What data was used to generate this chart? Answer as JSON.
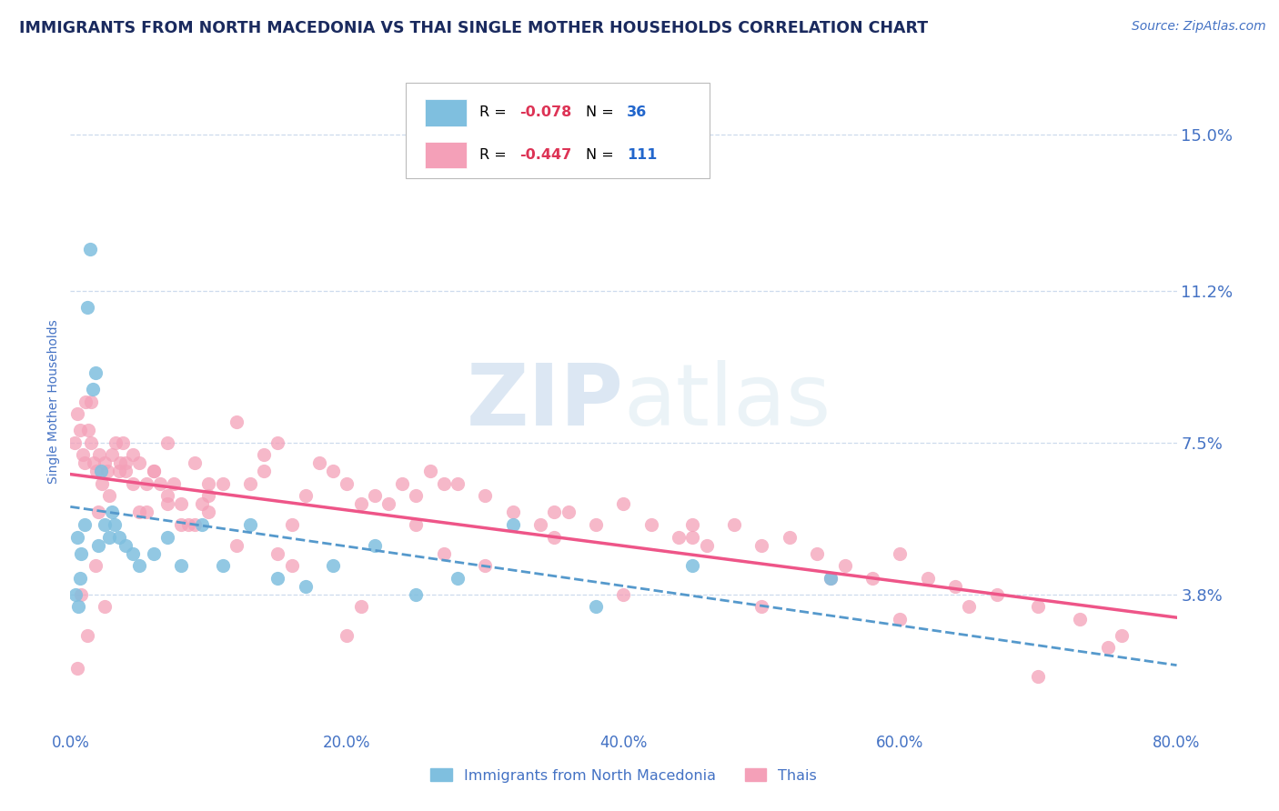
{
  "title": "IMMIGRANTS FROM NORTH MACEDONIA VS THAI SINGLE MOTHER HOUSEHOLDS CORRELATION CHART",
  "source_text": "Source: ZipAtlas.com",
  "ylabel": "Single Mother Households",
  "x_min": 0.0,
  "x_max": 80.0,
  "y_min": 0.5,
  "y_max": 16.5,
  "yticks": [
    3.8,
    7.5,
    11.2,
    15.0
  ],
  "xticks": [
    0.0,
    20.0,
    40.0,
    60.0,
    80.0
  ],
  "xtick_labels": [
    "0.0%",
    "20.0%",
    "40.0%",
    "60.0%",
    "80.0%"
  ],
  "ytick_labels": [
    "3.8%",
    "7.5%",
    "11.2%",
    "15.0%"
  ],
  "blue_R": -0.078,
  "blue_N": 36,
  "pink_R": -0.447,
  "pink_N": 111,
  "blue_color": "#7fbfdf",
  "pink_color": "#f4a0b8",
  "blue_line_color": "#5599cc",
  "pink_line_color": "#ee5588",
  "title_color": "#1a2a5e",
  "tick_color": "#4472c4",
  "grid_color": "#c8d8ec",
  "watermark_color": "#dce8f0",
  "legend_R_color": "#dd3355",
  "legend_N_color": "#2266cc",
  "blue_scatter_x": [
    0.4,
    0.5,
    0.6,
    0.7,
    0.8,
    1.0,
    1.2,
    1.4,
    1.6,
    1.8,
    2.0,
    2.2,
    2.5,
    2.8,
    3.0,
    3.2,
    3.5,
    4.0,
    4.5,
    5.0,
    6.0,
    7.0,
    8.0,
    9.5,
    11.0,
    13.0,
    15.0,
    17.0,
    19.0,
    22.0,
    25.0,
    28.0,
    32.0,
    38.0,
    45.0,
    55.0
  ],
  "blue_scatter_y": [
    3.8,
    5.2,
    3.5,
    4.2,
    4.8,
    5.5,
    10.8,
    12.2,
    8.8,
    9.2,
    5.0,
    6.8,
    5.5,
    5.2,
    5.8,
    5.5,
    5.2,
    5.0,
    4.8,
    4.5,
    4.8,
    5.2,
    4.5,
    5.5,
    4.5,
    5.5,
    4.2,
    4.0,
    4.5,
    5.0,
    3.8,
    4.2,
    5.5,
    3.5,
    4.5,
    4.2
  ],
  "pink_scatter_x": [
    0.3,
    0.5,
    0.7,
    0.9,
    1.1,
    1.3,
    1.5,
    1.7,
    1.9,
    2.1,
    2.3,
    2.5,
    2.7,
    3.0,
    3.3,
    3.6,
    4.0,
    4.5,
    5.0,
    5.5,
    6.0,
    6.5,
    7.0,
    7.5,
    8.0,
    8.5,
    9.0,
    9.5,
    10.0,
    11.0,
    12.0,
    13.0,
    14.0,
    15.0,
    16.0,
    17.0,
    18.0,
    19.0,
    20.0,
    21.0,
    22.0,
    23.0,
    24.0,
    25.0,
    26.0,
    27.0,
    28.0,
    30.0,
    32.0,
    34.0,
    36.0,
    38.0,
    40.0,
    42.0,
    44.0,
    46.0,
    48.0,
    50.0,
    52.0,
    54.0,
    56.0,
    58.0,
    60.0,
    62.0,
    64.0,
    67.0,
    70.0,
    73.0,
    76.0,
    1.0,
    1.5,
    2.0,
    2.8,
    3.5,
    4.5,
    5.5,
    7.0,
    9.0,
    12.0,
    16.0,
    21.0,
    27.0,
    35.0,
    45.0,
    55.0,
    65.0,
    75.0,
    4.0,
    6.0,
    8.0,
    10.0,
    15.0,
    20.0,
    30.0,
    40.0,
    50.0,
    60.0,
    70.0,
    25.0,
    35.0,
    45.0,
    0.5,
    0.8,
    1.2,
    1.8,
    2.5,
    3.8,
    5.0,
    7.0,
    10.0,
    14.0
  ],
  "pink_scatter_y": [
    7.5,
    8.2,
    7.8,
    7.2,
    8.5,
    7.8,
    7.5,
    7.0,
    6.8,
    7.2,
    6.5,
    7.0,
    6.8,
    7.2,
    7.5,
    7.0,
    6.8,
    7.2,
    7.0,
    6.5,
    6.8,
    6.5,
    7.5,
    6.5,
    6.0,
    5.5,
    7.0,
    6.0,
    6.2,
    6.5,
    8.0,
    6.5,
    7.2,
    7.5,
    5.5,
    6.2,
    7.0,
    6.8,
    6.5,
    6.0,
    6.2,
    6.0,
    6.5,
    6.2,
    6.8,
    6.5,
    6.5,
    6.2,
    5.8,
    5.5,
    5.8,
    5.5,
    6.0,
    5.5,
    5.2,
    5.0,
    5.5,
    5.0,
    5.2,
    4.8,
    4.5,
    4.2,
    4.8,
    4.2,
    4.0,
    3.8,
    3.5,
    3.2,
    2.8,
    7.0,
    8.5,
    5.8,
    6.2,
    6.8,
    6.5,
    5.8,
    6.0,
    5.5,
    5.0,
    4.5,
    3.5,
    4.8,
    5.2,
    5.5,
    4.2,
    3.5,
    2.5,
    7.0,
    6.8,
    5.5,
    5.8,
    4.8,
    2.8,
    4.5,
    3.8,
    3.5,
    3.2,
    1.8,
    5.5,
    5.8,
    5.2,
    2.0,
    3.8,
    2.8,
    4.5,
    3.5,
    7.5,
    5.8,
    6.2,
    6.5,
    6.8
  ]
}
